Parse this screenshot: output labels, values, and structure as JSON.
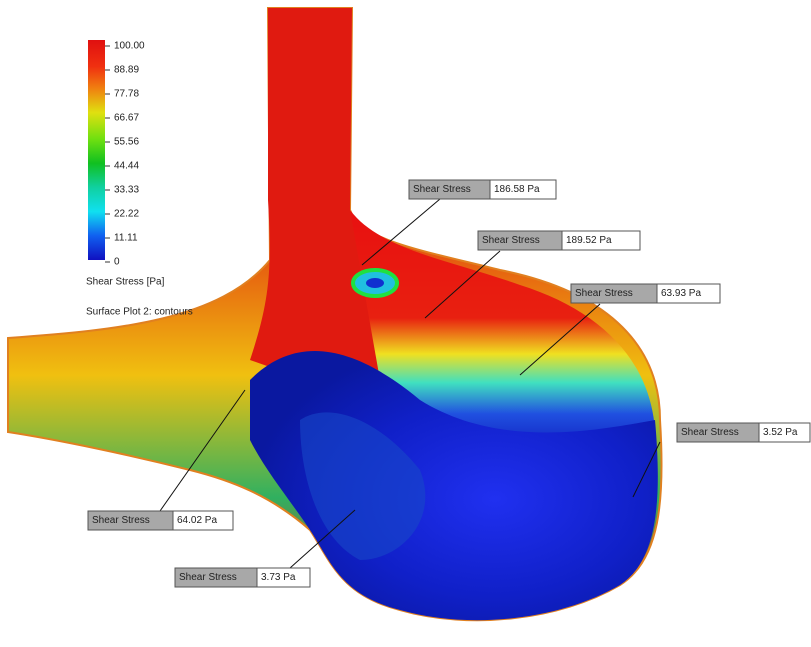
{
  "legend": {
    "ticks": [
      "100.00",
      "88.89",
      "77.78",
      "66.67",
      "55.56",
      "44.44",
      "33.33",
      "22.22",
      "11.11",
      "0"
    ],
    "title": "Shear Stress [Pa]",
    "subtitle": "Surface Plot 2: contours"
  },
  "callouts": [
    {
      "label": "Shear Stress",
      "value": "186.58 Pa"
    },
    {
      "label": "Shear Stress",
      "value": "189.52 Pa"
    },
    {
      "label": "Shear Stress",
      "value": "63.93 Pa"
    },
    {
      "label": "Shear Stress",
      "value": "3.52 Pa"
    },
    {
      "label": "Shear Stress",
      "value": "64.02 Pa"
    },
    {
      "label": "Shear Stress",
      "value": "3.73 Pa"
    }
  ]
}
